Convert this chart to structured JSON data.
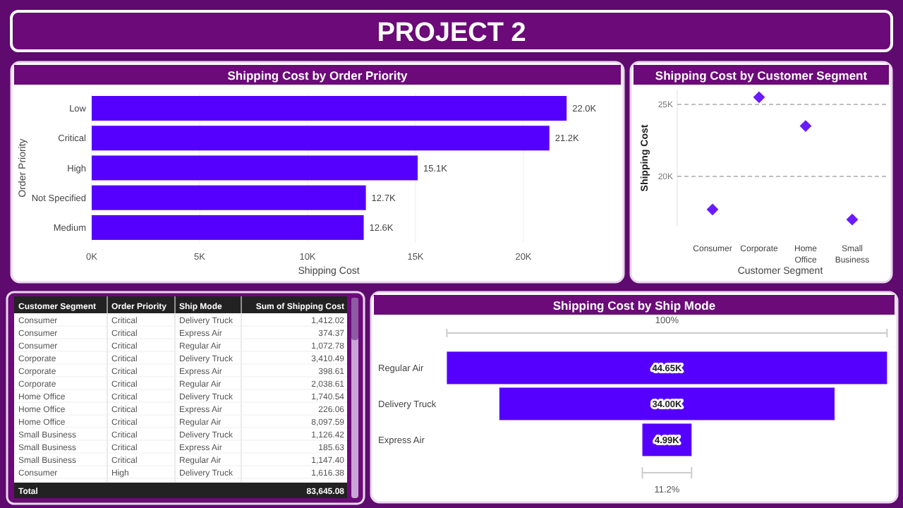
{
  "chart_data": [
    {
      "type": "other",
      "title": "PROJECT 2"
    },
    {
      "type": "bar",
      "orientation": "horizontal",
      "title": "Shipping Cost by Order Priority",
      "xlabel": "Shipping Cost",
      "ylabel": "Order Priority",
      "categories": [
        "Low",
        "Critical",
        "High",
        "Not Specified",
        "Medium"
      ],
      "values": [
        22000,
        21200,
        15100,
        12700,
        12600
      ],
      "value_labels": [
        "22.0K",
        "21.2K",
        "15.1K",
        "12.7K",
        "12.6K"
      ],
      "color": "#5500ff",
      "xlim": [
        0,
        22000
      ],
      "xticks": [
        {
          "value": 0,
          "label": "0K"
        },
        {
          "value": 5000,
          "label": "5K"
        },
        {
          "value": 10000,
          "label": "10K"
        },
        {
          "value": 15000,
          "label": "15K"
        },
        {
          "value": 20000,
          "label": "20K"
        }
      ],
      "grid": "x"
    },
    {
      "type": "scatter",
      "title": "Shipping Cost by Customer Segment",
      "xlabel": "Customer Segment",
      "ylabel": "Shipping Cost",
      "categories": [
        "Consumer",
        "Corporate",
        "Home Office",
        "Small Business"
      ],
      "values": [
        17700,
        25500,
        23500,
        17000
      ],
      "color": "#6a1bff",
      "marker": "diamond",
      "ylim": [
        16500,
        26000
      ],
      "yticks": [
        {
          "value": 20000,
          "label": "20K"
        },
        {
          "value": 25000,
          "label": "25K"
        }
      ],
      "grid": "y",
      "line_style": "dashed"
    },
    {
      "type": "other",
      "categories": [
        "Customer Segment",
        "Order Priority",
        "Ship Mode",
        "Sum of Shipping Cost"
      ],
      "cells": [
        [
          "Consumer",
          "Critical",
          "Delivery Truck",
          "1,412.02"
        ],
        [
          "Consumer",
          "Critical",
          "Express Air",
          "374.37"
        ],
        [
          "Consumer",
          "Critical",
          "Regular Air",
          "1,072.78"
        ],
        [
          "Corporate",
          "Critical",
          "Delivery Truck",
          "3,410.49"
        ],
        [
          "Corporate",
          "Critical",
          "Express Air",
          "398.61"
        ],
        [
          "Corporate",
          "Critical",
          "Regular Air",
          "2,038.61"
        ],
        [
          "Home Office",
          "Critical",
          "Delivery Truck",
          "1,740.54"
        ],
        [
          "Home Office",
          "Critical",
          "Express Air",
          "226.06"
        ],
        [
          "Home Office",
          "Critical",
          "Regular Air",
          "8,097.59"
        ],
        [
          "Small Business",
          "Critical",
          "Delivery Truck",
          "1,126.42"
        ],
        [
          "Small Business",
          "Critical",
          "Express Air",
          "185.63"
        ],
        [
          "Small Business",
          "Critical",
          "Regular Air",
          "1,147.40"
        ],
        [
          "Consumer",
          "High",
          "Delivery Truck",
          "1,616.38"
        ]
      ],
      "annotations": [
        "Total"
      ],
      "totals": [
        "83,645.08"
      ]
    },
    {
      "type": "other",
      "title": "Shipping Cost by Ship Mode",
      "categories": [
        "Regular Air",
        "Delivery Truck",
        "Express Air"
      ],
      "values": [
        44650,
        34000,
        4990
      ],
      "value_labels": [
        "44.65K",
        "34.00K",
        "4.99K"
      ],
      "color": "#5500ff",
      "annotations": [
        "100%",
        "11.2%"
      ]
    }
  ]
}
